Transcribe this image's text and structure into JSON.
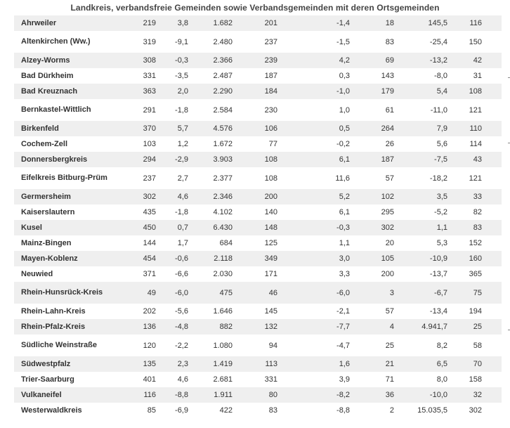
{
  "title": "Landkreis, verbandsfreie Gemeinden sowie Verbandsgemeinden mit deren Ortsgemeinden",
  "rows": [
    {
      "name": "Ahrweiler",
      "c1": "219",
      "c2": "3,8",
      "c3": "1.682",
      "c4": "201",
      "c5": "-1,4",
      "c6": "18",
      "c7": "145,5",
      "c8": "116"
    },
    {
      "name": "Altenkirchen (Ww.)",
      "c1": "319",
      "c2": "-9,1",
      "c3": "2.480",
      "c4": "237",
      "c5": "-1,5",
      "c6": "83",
      "c7": "-25,4",
      "c8": "150"
    },
    {
      "name": "Alzey-Worms",
      "c1": "308",
      "c2": "-0,3",
      "c3": "2.366",
      "c4": "239",
      "c5": "4,2",
      "c6": "69",
      "c7": "-13,2",
      "c8": "42"
    },
    {
      "name": "Bad Dürkheim",
      "c1": "331",
      "c2": "-3,5",
      "c3": "2.487",
      "c4": "187",
      "c5": "0,3",
      "c6": "143",
      "c7": "-8,0",
      "c8": "31"
    },
    {
      "name": "Bad Kreuznach",
      "c1": "363",
      "c2": "2,0",
      "c3": "2.290",
      "c4": "184",
      "c5": "-1,0",
      "c6": "179",
      "c7": "5,4",
      "c8": "108"
    },
    {
      "name": "Bernkastel-Wittlich",
      "c1": "291",
      "c2": "-1,8",
      "c3": "2.584",
      "c4": "230",
      "c5": "1,0",
      "c6": "61",
      "c7": "-11,0",
      "c8": "121"
    },
    {
      "name": "Birkenfeld",
      "c1": "370",
      "c2": "5,7",
      "c3": "4.576",
      "c4": "106",
      "c5": "0,5",
      "c6": "264",
      "c7": "7,9",
      "c8": "110"
    },
    {
      "name": "Cochem-Zell",
      "c1": "103",
      "c2": "1,2",
      "c3": "1.672",
      "c4": "77",
      "c5": "-0,2",
      "c6": "26",
      "c7": "5,6",
      "c8": "114"
    },
    {
      "name": "Donnersbergkreis",
      "c1": "294",
      "c2": "-2,9",
      "c3": "3.903",
      "c4": "108",
      "c5": "6,1",
      "c6": "187",
      "c7": "-7,5",
      "c8": "43"
    },
    {
      "name": "Eifelkreis Bitburg-Prüm",
      "c1": "237",
      "c2": "2,7",
      "c3": "2.377",
      "c4": "108",
      "c5": "11,6",
      "c6": "57",
      "c7": "-18,2",
      "c8": "121"
    },
    {
      "name": "Germersheim",
      "c1": "302",
      "c2": "4,6",
      "c3": "2.346",
      "c4": "200",
      "c5": "5,2",
      "c6": "102",
      "c7": "3,5",
      "c8": "33"
    },
    {
      "name": "Kaiserslautern",
      "c1": "435",
      "c2": "-1,8",
      "c3": "4.102",
      "c4": "140",
      "c5": "6,1",
      "c6": "295",
      "c7": "-5,2",
      "c8": "82"
    },
    {
      "name": "Kusel",
      "c1": "450",
      "c2": "0,7",
      "c3": "6.430",
      "c4": "148",
      "c5": "-0,3",
      "c6": "302",
      "c7": "1,1",
      "c8": "83"
    },
    {
      "name": "Mainz-Bingen",
      "c1": "144",
      "c2": "1,7",
      "c3": "684",
      "c4": "125",
      "c5": "1,1",
      "c6": "20",
      "c7": "5,3",
      "c8": "152"
    },
    {
      "name": "Mayen-Koblenz",
      "c1": "454",
      "c2": "-0,6",
      "c3": "2.118",
      "c4": "349",
      "c5": "3,0",
      "c6": "105",
      "c7": "-10,9",
      "c8": "160"
    },
    {
      "name": "Neuwied",
      "c1": "371",
      "c2": "-6,6",
      "c3": "2.030",
      "c4": "171",
      "c5": "3,3",
      "c6": "200",
      "c7": "-13,7",
      "c8": "365"
    },
    {
      "name": "Rhein-Hunsrück-Kreis",
      "c1": "49",
      "c2": "-6,0",
      "c3": "475",
      "c4": "46",
      "c5": "-6,0",
      "c6": "3",
      "c7": "-6,7",
      "c8": "75"
    },
    {
      "name": "Rhein-Lahn-Kreis",
      "c1": "202",
      "c2": "-5,6",
      "c3": "1.646",
      "c4": "145",
      "c5": "-2,1",
      "c6": "57",
      "c7": "-13,4",
      "c8": "194"
    },
    {
      "name": "Rhein-Pfalz-Kreis",
      "c1": "136",
      "c2": "-4,8",
      "c3": "882",
      "c4": "132",
      "c5": "-7,7",
      "c6": "4",
      "c7": "4.941,7",
      "c8": "25"
    },
    {
      "name": "Südliche Weinstraße",
      "c1": "120",
      "c2": "-2,2",
      "c3": "1.080",
      "c4": "94",
      "c5": "-4,7",
      "c6": "25",
      "c7": "8,2",
      "c8": "58"
    },
    {
      "name": "Südwestpfalz",
      "c1": "135",
      "c2": "2,3",
      "c3": "1.419",
      "c4": "113",
      "c5": "1,6",
      "c6": "21",
      "c7": "6,5",
      "c8": "70"
    },
    {
      "name": "Trier-Saarburg",
      "c1": "401",
      "c2": "4,6",
      "c3": "2.681",
      "c4": "331",
      "c5": "3,9",
      "c6": "71",
      "c7": "8,0",
      "c8": "158"
    },
    {
      "name": "Vulkaneifel",
      "c1": "116",
      "c2": "-8,8",
      "c3": "1.911",
      "c4": "80",
      "c5": "-8,2",
      "c6": "36",
      "c7": "-10,0",
      "c8": "32"
    },
    {
      "name": "Westerwaldkreis",
      "c1": "85",
      "c2": "-6,9",
      "c3": "422",
      "c4": "83",
      "c5": "-8,8",
      "c6": "2",
      "c7": "15.035,5",
      "c8": "302"
    }
  ]
}
